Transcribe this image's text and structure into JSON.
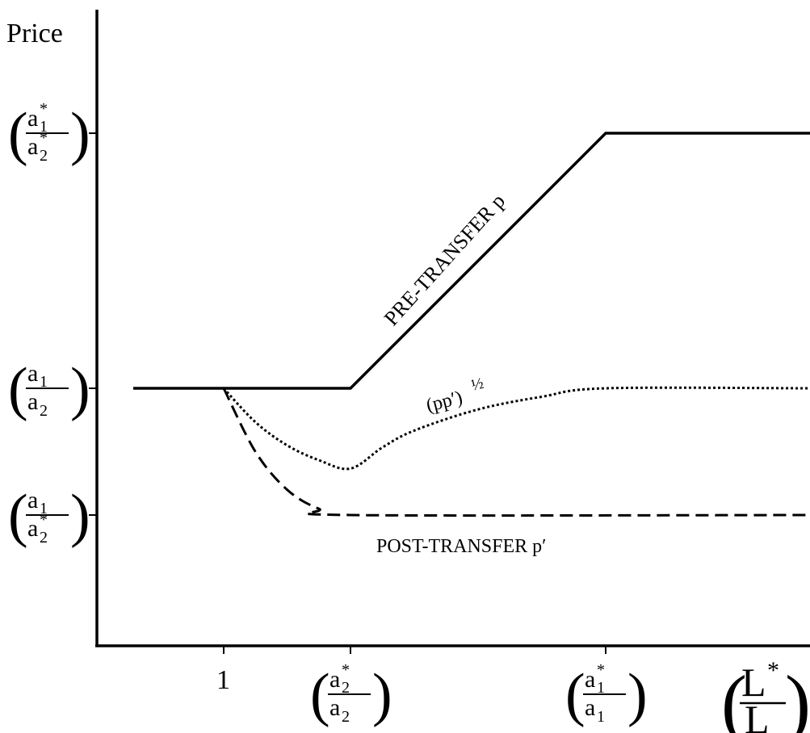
{
  "chart_data": {
    "type": "line",
    "title": "",
    "ylabel": "Price",
    "xlabel": "L*/L",
    "x_ticks": [
      {
        "value": "1",
        "label": "1"
      },
      {
        "value": "a2*/a2",
        "num": "a",
        "num_sub": "2",
        "num_sup": "*",
        "den": "a",
        "den_sub": "2",
        "den_sup": ""
      },
      {
        "value": "a1*/a1",
        "num": "a",
        "num_sub": "1",
        "num_sup": "*",
        "den": "a",
        "den_sub": "1",
        "den_sup": ""
      }
    ],
    "x_axis_label": {
      "num": "L",
      "num_sup": "*",
      "den": "L"
    },
    "y_ticks": [
      {
        "value": "a1*/a2*",
        "num": "a",
        "num_sub": "1",
        "num_sup": "*",
        "den": "a",
        "den_sub": "2",
        "den_sup": "*"
      },
      {
        "value": "a1/a2",
        "num": "a",
        "num_sub": "1",
        "num_sup": "",
        "den": "a",
        "den_sub": "2",
        "den_sup": ""
      },
      {
        "value": "a1/a2*",
        "num": "a",
        "num_sub": "1",
        "num_sup": "",
        "den": "a",
        "den_sub": "2",
        "den_sup": "*"
      }
    ],
    "series": [
      {
        "name": "PRE-TRANSFER p",
        "style": "solid",
        "points": [
          [
            0.0,
            1.0
          ],
          [
            1.0,
            1.0
          ],
          [
            2.0,
            1.0
          ],
          [
            4.0,
            3.0
          ],
          [
            5.5,
            3.0
          ]
        ]
      },
      {
        "name": "(pp′)^½",
        "style": "dotted",
        "points": [
          [
            1.0,
            1.0
          ],
          [
            1.25,
            0.84
          ],
          [
            1.5,
            0.73
          ],
          [
            1.75,
            0.66
          ],
          [
            2.0,
            0.62
          ],
          [
            2.25,
            0.72
          ],
          [
            2.5,
            0.8
          ],
          [
            3.0,
            0.9
          ],
          [
            3.5,
            0.96
          ],
          [
            4.0,
            1.0
          ],
          [
            5.5,
            1.0
          ]
        ]
      },
      {
        "name": "POST-TRANSFER p′",
        "style": "dashed",
        "points": [
          [
            1.0,
            1.0
          ],
          [
            1.25,
            0.7
          ],
          [
            1.5,
            0.52
          ],
          [
            1.75,
            0.43
          ],
          [
            2.0,
            0.4
          ],
          [
            5.5,
            0.4
          ]
        ]
      }
    ],
    "annotations": {
      "pre": "PRE-TRANSFER  p",
      "post": "POST-TRANSFER p′",
      "geo_base": "(pp′)",
      "geo_exp": "½"
    },
    "colors": {
      "line": "#000000",
      "background": "#ffffff"
    },
    "grid": false
  }
}
